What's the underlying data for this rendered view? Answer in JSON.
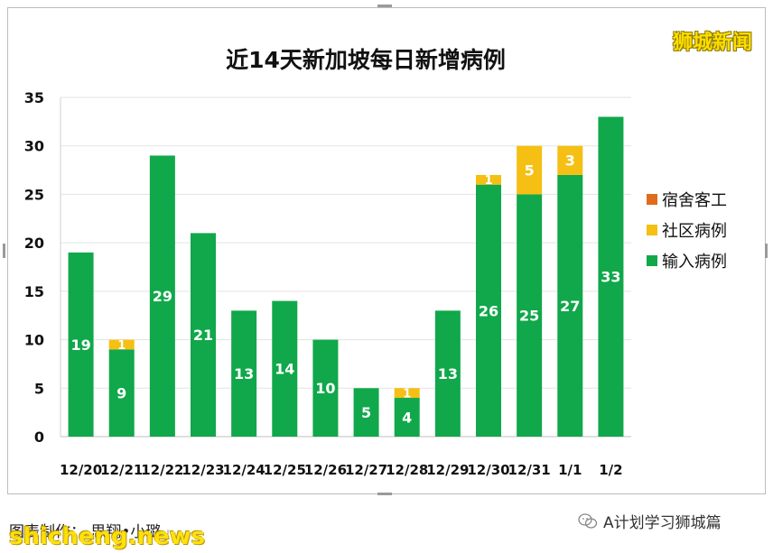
{
  "brand": "狮城新闻",
  "credit": "图表制作：  思翔•小璐",
  "credit_mark": "↵",
  "wechat_account": "A计划学习狮城篇",
  "watermark": "shicheng.news",
  "chart_data": {
    "type": "bar",
    "stacked": true,
    "title": "近14天新加坡每日新增病例",
    "categories": [
      "12/20",
      "12/21",
      "12/22",
      "12/23",
      "12/24",
      "12/25",
      "12/26",
      "12/27",
      "12/28",
      "12/29",
      "12/30",
      "12/31",
      "1/1",
      "1/2"
    ],
    "series": [
      {
        "name": "输入病例",
        "color": "#10a84a",
        "values": [
          19,
          9,
          29,
          21,
          13,
          14,
          10,
          5,
          4,
          13,
          26,
          25,
          27,
          33
        ]
      },
      {
        "name": "社区病例",
        "color": "#f5bf14",
        "values": [
          0,
          1,
          0,
          0,
          0,
          0,
          0,
          0,
          1,
          0,
          1,
          5,
          3,
          0
        ]
      },
      {
        "name": "宿舍客工",
        "color": "#e06b1a",
        "values": [
          0,
          0,
          0,
          0,
          0,
          0,
          0,
          0,
          0,
          0,
          0,
          0,
          0,
          0
        ]
      }
    ],
    "legend_order": [
      "宿舍客工",
      "社区病例",
      "输入病例"
    ],
    "ylim": [
      0,
      35
    ],
    "yticks": [
      0,
      5,
      10,
      15,
      20,
      25,
      30,
      35
    ],
    "grid": true,
    "legend_position": "right"
  }
}
